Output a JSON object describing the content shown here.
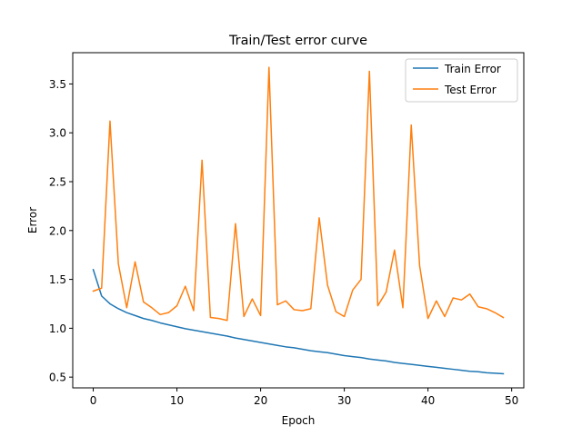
{
  "chart_data": {
    "type": "line",
    "title": "Train/Test error curve",
    "xlabel": "Epoch",
    "ylabel": "Error",
    "xlim": [
      -2.45,
      51.45
    ],
    "ylim": [
      0.39,
      3.82
    ],
    "xticks": [
      0,
      10,
      20,
      30,
      40,
      50
    ],
    "yticks": [
      0.5,
      1.0,
      1.5,
      2.0,
      2.5,
      3.0,
      3.5
    ],
    "ytick_labels": [
      "0.5",
      "1.0",
      "1.5",
      "2.0",
      "2.5",
      "3.0",
      "3.5"
    ],
    "legend_position": "upper right",
    "grid": false,
    "series": [
      {
        "name": "Train Error",
        "color": "#1f77b4",
        "x": [
          0,
          1,
          2,
          3,
          4,
          5,
          6,
          7,
          8,
          9,
          10,
          11,
          12,
          13,
          14,
          15,
          16,
          17,
          18,
          19,
          20,
          21,
          22,
          23,
          24,
          25,
          26,
          27,
          28,
          29,
          30,
          31,
          32,
          33,
          34,
          35,
          36,
          37,
          38,
          39,
          40,
          41,
          42,
          43,
          44,
          45,
          46,
          47,
          48,
          49
        ],
        "values": [
          1.6,
          1.33,
          1.25,
          1.2,
          1.16,
          1.13,
          1.1,
          1.08,
          1.055,
          1.035,
          1.015,
          0.995,
          0.98,
          0.965,
          0.95,
          0.935,
          0.92,
          0.9,
          0.885,
          0.87,
          0.855,
          0.84,
          0.825,
          0.81,
          0.8,
          0.785,
          0.77,
          0.76,
          0.75,
          0.735,
          0.72,
          0.71,
          0.7,
          0.685,
          0.675,
          0.665,
          0.65,
          0.64,
          0.63,
          0.62,
          0.61,
          0.6,
          0.59,
          0.58,
          0.57,
          0.56,
          0.555,
          0.545,
          0.54,
          0.535
        ]
      },
      {
        "name": "Test Error",
        "color": "#ff7f0e",
        "x": [
          0,
          1,
          2,
          3,
          4,
          5,
          6,
          7,
          8,
          9,
          10,
          11,
          12,
          13,
          14,
          15,
          16,
          17,
          18,
          19,
          20,
          21,
          22,
          23,
          24,
          25,
          26,
          27,
          28,
          29,
          30,
          31,
          32,
          33,
          34,
          35,
          36,
          37,
          38,
          39,
          40,
          41,
          42,
          43,
          44,
          45,
          46,
          47,
          48,
          49
        ],
        "values": [
          1.38,
          1.41,
          3.12,
          1.66,
          1.21,
          1.68,
          1.27,
          1.21,
          1.14,
          1.16,
          1.23,
          1.43,
          1.18,
          2.72,
          1.11,
          1.1,
          1.08,
          2.07,
          1.12,
          1.3,
          1.13,
          3.67,
          1.24,
          1.28,
          1.19,
          1.18,
          1.2,
          2.13,
          1.44,
          1.17,
          1.12,
          1.39,
          1.5,
          3.63,
          1.23,
          1.37,
          1.8,
          1.21,
          3.08,
          1.64,
          1.1,
          1.28,
          1.12,
          1.31,
          1.29,
          1.35,
          1.22,
          1.2,
          1.16,
          1.11
        ]
      }
    ]
  }
}
